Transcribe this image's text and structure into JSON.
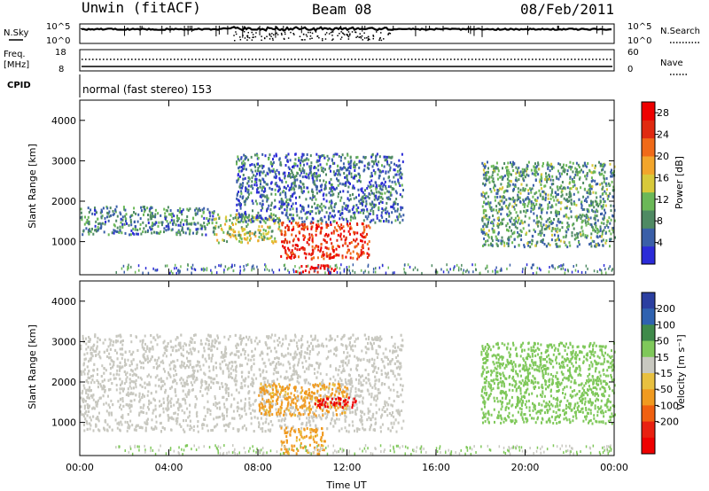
{
  "header": {
    "station": "Unwin (fitACF)",
    "beam": "Beam 08",
    "date": "08/Feb/2011"
  },
  "strips": {
    "nsky": {
      "label": "N.Sky",
      "left_ticks": [
        "10^5",
        "10^0"
      ],
      "right_ticks": [
        "10^5",
        "10^0"
      ],
      "right_label": "N.Search"
    },
    "freq": {
      "label_top": "Freq.",
      "label_unit": "[MHz]",
      "left_ticks": [
        "18",
        "8"
      ],
      "right_ticks": [
        "60",
        "0"
      ],
      "right_label": "Nave"
    },
    "cpid": {
      "label": "CPID",
      "text": "normal (fast stereo) 153"
    }
  },
  "colors": {
    "power_scale": [
      "#2b2bd8",
      "#3a5fa8",
      "#4f8a63",
      "#6bb858",
      "#d8c93a",
      "#f2a52b",
      "#f06a18",
      "#e02a10",
      "#ee0000"
    ],
    "velocity_scale": [
      "#2b3fa0",
      "#2f62b0",
      "#3f8a4a",
      "#7fc85a",
      "#c8c8c0",
      "#e8c040",
      "#f09a20",
      "#f06010",
      "#e82010",
      "#ee0000"
    ]
  },
  "chart_data": [
    {
      "type": "heatmap",
      "name": "power",
      "xlabel": "Time UT",
      "ylabel": "Slant Range [km]",
      "x_ticks": [
        "00:00",
        "04:00",
        "08:00",
        "12:00",
        "16:00",
        "20:00",
        "00:00"
      ],
      "x_range_hours": [
        0,
        24
      ],
      "y_ticks": [
        1000,
        2000,
        3000,
        4000
      ],
      "ylim": [
        180,
        4500
      ],
      "colorbar": {
        "label": "Power [dB]",
        "ticks": [
          4,
          8,
          12,
          16,
          20,
          24,
          28
        ],
        "range": [
          0,
          30
        ]
      },
      "regions": [
        {
          "t0": 0.0,
          "t1": 6.0,
          "r0": 1200,
          "r1": 1900,
          "level": 0.25
        },
        {
          "t0": 6.0,
          "t1": 9.0,
          "r0": 1000,
          "r1": 1700,
          "level": 0.45
        },
        {
          "t0": 9.0,
          "t1": 13.0,
          "r0": 600,
          "r1": 1500,
          "level": 0.85
        },
        {
          "t0": 9.5,
          "t1": 11.5,
          "r0": 250,
          "r1": 450,
          "level": 0.95
        },
        {
          "t0": 7.0,
          "t1": 14.5,
          "r0": 1500,
          "r1": 3200,
          "level": 0.2
        },
        {
          "t0": 18.0,
          "t1": 24.0,
          "r0": 900,
          "r1": 3000,
          "level": 0.3
        }
      ]
    },
    {
      "type": "heatmap",
      "name": "velocity",
      "xlabel": "Time UT",
      "ylabel": "Slant Range [km]",
      "x_ticks": [
        "00:00",
        "04:00",
        "08:00",
        "12:00",
        "16:00",
        "20:00",
        "00:00"
      ],
      "x_range_hours": [
        0,
        24
      ],
      "y_ticks": [
        1000,
        2000,
        3000,
        4000
      ],
      "ylim": [
        180,
        4500
      ],
      "colorbar": {
        "label": "Velocity [m s⁻¹]",
        "ticks": [
          200,
          100,
          50,
          15,
          -15,
          -50,
          -100,
          -200
        ],
        "range": [
          -250,
          250
        ]
      },
      "regions": [
        {
          "t0": 0.0,
          "t1": 14.5,
          "r0": 800,
          "r1": 3200,
          "value": 0
        },
        {
          "t0": 8.0,
          "t1": 12.0,
          "r0": 1200,
          "r1": 2000,
          "value": -60
        },
        {
          "t0": 10.5,
          "t1": 12.5,
          "r0": 1400,
          "r1": 1650,
          "value": -220
        },
        {
          "t0": 9.0,
          "t1": 11.0,
          "r0": 250,
          "r1": 900,
          "value": -60
        },
        {
          "t0": 18.0,
          "t1": 24.0,
          "r0": 1000,
          "r1": 3000,
          "value": 30
        }
      ]
    }
  ]
}
